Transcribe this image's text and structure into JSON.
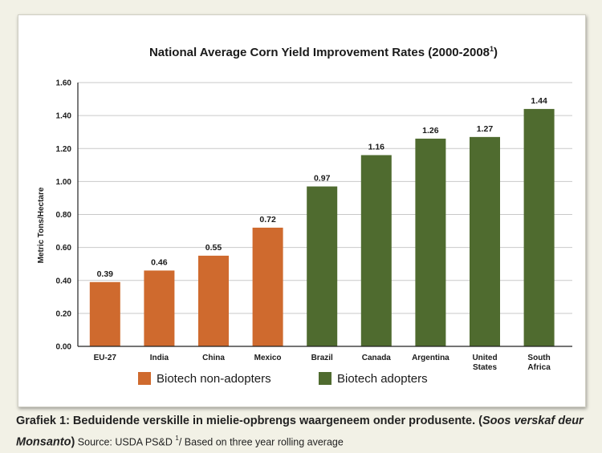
{
  "chart_data": {
    "type": "bar",
    "title": "National Average Corn Yield Improvement Rates (2000-2008",
    "title_superscript": "1",
    "title_close": ")",
    "ylabel": "Metric Tons/Hectare",
    "xlabel": "",
    "ylim": [
      0,
      1.6
    ],
    "yticks": [
      "0.00",
      "0.20",
      "0.40",
      "0.60",
      "0.80",
      "1.00",
      "1.20",
      "1.40",
      "1.60"
    ],
    "grid": true,
    "categories": [
      "EU-27",
      "India",
      "China",
      "Mexico",
      "Brazil",
      "Canada",
      "Argentina",
      "United States",
      "South Africa"
    ],
    "category_lines": [
      [
        "EU-27"
      ],
      [
        "India"
      ],
      [
        "China"
      ],
      [
        "Mexico"
      ],
      [
        "Brazil"
      ],
      [
        "Canada"
      ],
      [
        "Argentina"
      ],
      [
        "United",
        "States"
      ],
      [
        "South",
        "Africa"
      ]
    ],
    "values": [
      0.39,
      0.46,
      0.55,
      0.72,
      0.97,
      1.16,
      1.26,
      1.27,
      1.44
    ],
    "value_labels": [
      "0.39",
      "0.46",
      "0.55",
      "0.72",
      "0.97",
      "1.16",
      "1.26",
      "1.27",
      "1.44"
    ],
    "groups": [
      0,
      0,
      0,
      0,
      1,
      1,
      1,
      1,
      1
    ],
    "legend": [
      {
        "name": "Biotech non-adopters",
        "color": "#cf6a2e"
      },
      {
        "name": "Biotech adopters",
        "color": "#4f6b2f"
      }
    ],
    "legend_position": "bottom"
  },
  "caption": {
    "main": "Grafiek 1: Beduidende verskille in mielie-opbrengs waargeneem onder produsente. (",
    "italic": "Soos verskaf deur Monsanto",
    "close": ")",
    "source": " Source: USDA PS&D ",
    "source_sup": "1",
    "source_tail": "/ Based on three year rolling average"
  }
}
